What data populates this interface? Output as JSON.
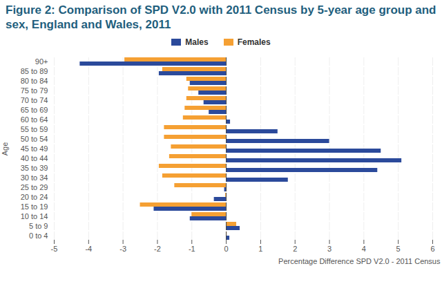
{
  "chart_data": {
    "type": "bar",
    "orientation": "horizontal",
    "title": "Figure 2: Comparison of SPD V2.0 with 2011 Census by 5-year age group and sex, England and Wales, 2011",
    "x_label": "Percentage Difference SPD V2.0 - 2011 Census",
    "y_label": "Age",
    "categories": [
      "90+",
      "85 to 89",
      "80 to 84",
      "75 to 79",
      "70 to 74",
      "65 to 69",
      "60 to 64",
      "55 to 59",
      "50 to 54",
      "45 to 49",
      "40 to 44",
      "35 to 39",
      "30 to 34",
      "25 to 29",
      "20 to 24",
      "15 to 19",
      "10 to 14",
      "5 to 9",
      "0 to 4"
    ],
    "series": [
      {
        "name": "Males",
        "color": "#2b4a9b",
        "values": [
          -4.25,
          -1.95,
          -1.05,
          -0.8,
          -0.65,
          -0.5,
          0.12,
          1.5,
          3.0,
          4.5,
          5.1,
          4.4,
          1.8,
          -0.05,
          -0.35,
          -2.1,
          -1.05,
          0.4,
          0.1
        ]
      },
      {
        "name": "Females",
        "color": "#f5a033",
        "values": [
          -2.95,
          -1.85,
          -1.15,
          -1.1,
          -1.15,
          -1.2,
          -1.25,
          -1.8,
          -1.8,
          -1.6,
          -1.65,
          -1.95,
          -1.85,
          -1.5,
          -0.02,
          -2.5,
          -1.0,
          0.3,
          0.02
        ]
      }
    ],
    "xlim": [
      -5,
      6
    ],
    "xticks": [
      -5,
      -4,
      -3,
      -2,
      -1,
      0,
      1,
      2,
      3,
      4,
      5,
      6
    ],
    "grid": true,
    "legend": "top"
  }
}
